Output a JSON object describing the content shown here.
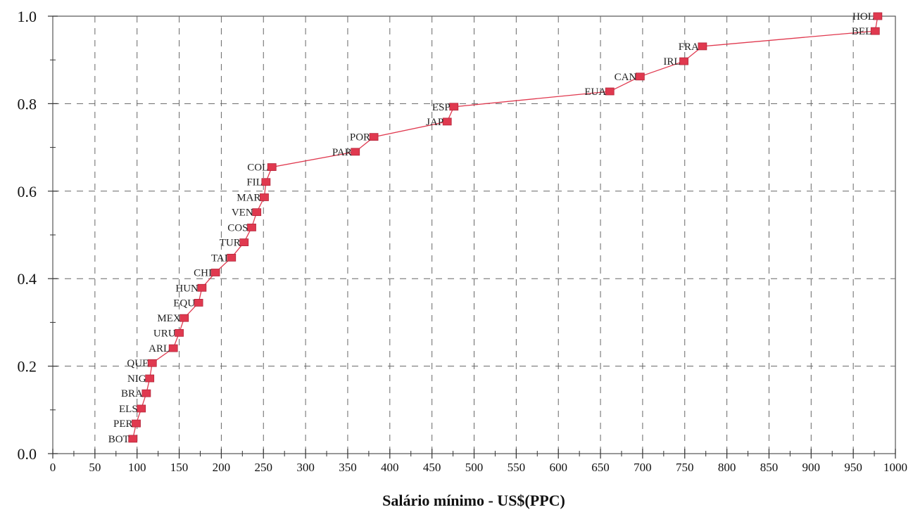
{
  "chart_data": {
    "type": "line",
    "title": "",
    "xlabel": "Salário mínimo - US$(PPC)",
    "ylabel": "",
    "xlim": [
      0,
      1000
    ],
    "ylim": [
      0,
      1
    ],
    "x_ticks": [
      "0",
      "50",
      "100",
      "150",
      "200",
      "250",
      "300",
      "350",
      "400",
      "450",
      "500",
      "550",
      "600",
      "650",
      "700",
      "750",
      "800",
      "850",
      "900",
      "950",
      "1000"
    ],
    "y_ticks": [
      "0.0",
      "0.2",
      "0.4",
      "0.6",
      "0.8",
      "1.0"
    ],
    "grid": true,
    "line_color": "#e0394f",
    "marker_color": "#e0394f",
    "points": [
      {
        "label": "BOT",
        "x": 95,
        "y": 0.034
      },
      {
        "label": "PER",
        "x": 99,
        "y": 0.069
      },
      {
        "label": "ELS",
        "x": 105,
        "y": 0.103
      },
      {
        "label": "BRA",
        "x": 111,
        "y": 0.138
      },
      {
        "label": "NIG",
        "x": 115,
        "y": 0.172
      },
      {
        "label": "QUE",
        "x": 118,
        "y": 0.207
      },
      {
        "label": "ARL",
        "x": 143,
        "y": 0.241
      },
      {
        "label": "URU",
        "x": 150,
        "y": 0.276
      },
      {
        "label": "MEX",
        "x": 156,
        "y": 0.31
      },
      {
        "label": "EQU",
        "x": 173,
        "y": 0.345
      },
      {
        "label": "HUN",
        "x": 177,
        "y": 0.379
      },
      {
        "label": "CHI",
        "x": 193,
        "y": 0.414
      },
      {
        "label": "TAI",
        "x": 212,
        "y": 0.448
      },
      {
        "label": "TUR",
        "x": 227,
        "y": 0.483
      },
      {
        "label": "COS",
        "x": 236,
        "y": 0.517
      },
      {
        "label": "VEN",
        "x": 242,
        "y": 0.552
      },
      {
        "label": "MAR",
        "x": 251,
        "y": 0.586
      },
      {
        "label": "FIL",
        "x": 253,
        "y": 0.621
      },
      {
        "label": "COL",
        "x": 260,
        "y": 0.655
      },
      {
        "label": "PAR",
        "x": 359,
        "y": 0.69
      },
      {
        "label": "POR",
        "x": 381,
        "y": 0.724
      },
      {
        "label": "JAP",
        "x": 468,
        "y": 0.759
      },
      {
        "label": "ESP",
        "x": 476,
        "y": 0.793
      },
      {
        "label": "EUA",
        "x": 661,
        "y": 0.828
      },
      {
        "label": "CAN",
        "x": 697,
        "y": 0.862
      },
      {
        "label": "IRL",
        "x": 749,
        "y": 0.897
      },
      {
        "label": "FRA",
        "x": 771,
        "y": 0.931
      },
      {
        "label": "BEL",
        "x": 976,
        "y": 0.966
      },
      {
        "label": "HOL",
        "x": 979,
        "y": 1.0
      }
    ]
  }
}
